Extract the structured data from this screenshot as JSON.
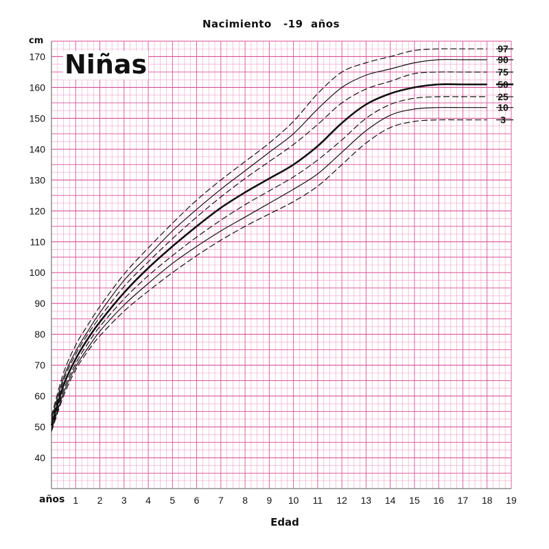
{
  "title": "Nacimiento   -19  años",
  "subtitle": "Niñas",
  "chart_data": {
    "type": "line",
    "xlabel": "Edad",
    "ylabel": "cm",
    "x_unit_label": "años",
    "xlim": [
      0,
      19
    ],
    "ylim": [
      30,
      175
    ],
    "x_ticks": [
      "1",
      "2",
      "3",
      "4",
      "5",
      "6",
      "7",
      "8",
      "9",
      "10",
      "11",
      "12",
      "13",
      "14",
      "15",
      "16",
      "17",
      "18",
      "19"
    ],
    "y_ticks": [
      "40",
      "50",
      "60",
      "70",
      "80",
      "90",
      "100",
      "110",
      "120",
      "130",
      "140",
      "150",
      "160",
      "170"
    ],
    "grid": true,
    "series": [
      {
        "name": "97",
        "style": "dashed",
        "x": [
          0,
          0.5,
          1,
          1.5,
          2,
          3,
          4,
          5,
          6,
          7,
          8,
          9,
          10,
          11,
          12,
          13,
          14,
          15,
          16,
          17,
          18
        ],
        "y": [
          53.5,
          67.5,
          76.5,
          83,
          89,
          99.5,
          108,
          116,
          123.5,
          130,
          136,
          142,
          149,
          158,
          165,
          168,
          170,
          172,
          172.5,
          172.5,
          172.5
        ]
      },
      {
        "name": "90",
        "style": "solid",
        "x": [
          0,
          0.5,
          1,
          1.5,
          2,
          3,
          4,
          5,
          6,
          7,
          8,
          9,
          10,
          11,
          12,
          13,
          14,
          15,
          16,
          17,
          18
        ],
        "y": [
          52.5,
          66,
          74.5,
          81,
          87,
          97.5,
          105.5,
          113.5,
          120.5,
          127,
          133,
          139,
          145,
          153,
          160,
          164,
          166,
          168,
          169,
          169,
          169
        ]
      },
      {
        "name": "75",
        "style": "dashed",
        "x": [
          0,
          0.5,
          1,
          1.5,
          2,
          3,
          4,
          5,
          6,
          7,
          8,
          9,
          10,
          11,
          12,
          13,
          14,
          15,
          16,
          17,
          18
        ],
        "y": [
          51.5,
          65,
          73.5,
          80,
          85.5,
          95.5,
          103.5,
          111,
          118,
          124.5,
          130.5,
          136,
          141.5,
          148,
          155,
          159.5,
          162,
          164.5,
          165,
          165,
          165
        ]
      },
      {
        "name": "50",
        "style": "bold",
        "x": [
          0,
          0.5,
          1,
          1.5,
          2,
          3,
          4,
          5,
          6,
          7,
          8,
          9,
          10,
          11,
          12,
          13,
          14,
          15,
          16,
          17,
          18
        ],
        "y": [
          50.5,
          63.5,
          72,
          78.5,
          84,
          93.5,
          101.5,
          108.5,
          115,
          121,
          126,
          130.5,
          135,
          141,
          148.5,
          154.5,
          158,
          160,
          161,
          161,
          161
        ]
      },
      {
        "name": "25",
        "style": "dashed",
        "x": [
          0,
          0.5,
          1,
          1.5,
          2,
          3,
          4,
          5,
          6,
          7,
          8,
          9,
          10,
          11,
          12,
          13,
          14,
          15,
          16,
          17,
          18
        ],
        "y": [
          49.5,
          62,
          70.5,
          77,
          82.5,
          91.5,
          99,
          105.5,
          111.5,
          117,
          122,
          126.5,
          131,
          136.5,
          143,
          150,
          154.5,
          156.5,
          157,
          157,
          157
        ]
      },
      {
        "name": "10",
        "style": "solid",
        "x": [
          0,
          0.5,
          1,
          1.5,
          2,
          3,
          4,
          5,
          6,
          7,
          8,
          9,
          10,
          11,
          12,
          13,
          14,
          15,
          16,
          17,
          18
        ],
        "y": [
          49,
          61,
          69.5,
          75.5,
          81,
          89.5,
          96.5,
          103,
          108.5,
          113.5,
          118,
          122.5,
          127,
          132,
          139,
          146,
          151,
          153,
          153.5,
          153.5,
          153.5
        ]
      },
      {
        "name": "3",
        "style": "dashed",
        "x": [
          0,
          0.5,
          1,
          1.5,
          2,
          3,
          4,
          5,
          6,
          7,
          8,
          9,
          10,
          11,
          12,
          13,
          14,
          15,
          16,
          17,
          18
        ],
        "y": [
          48.5,
          60,
          68.5,
          74.5,
          79.5,
          87.5,
          94,
          100,
          105.5,
          110.5,
          115,
          119,
          123,
          128,
          135,
          142,
          147,
          149,
          149.5,
          149.5,
          149.5
        ]
      }
    ],
    "line_color": "#111111",
    "grid_color_major": "#d84f95",
    "grid_color_minor": "#ee9fc7"
  }
}
